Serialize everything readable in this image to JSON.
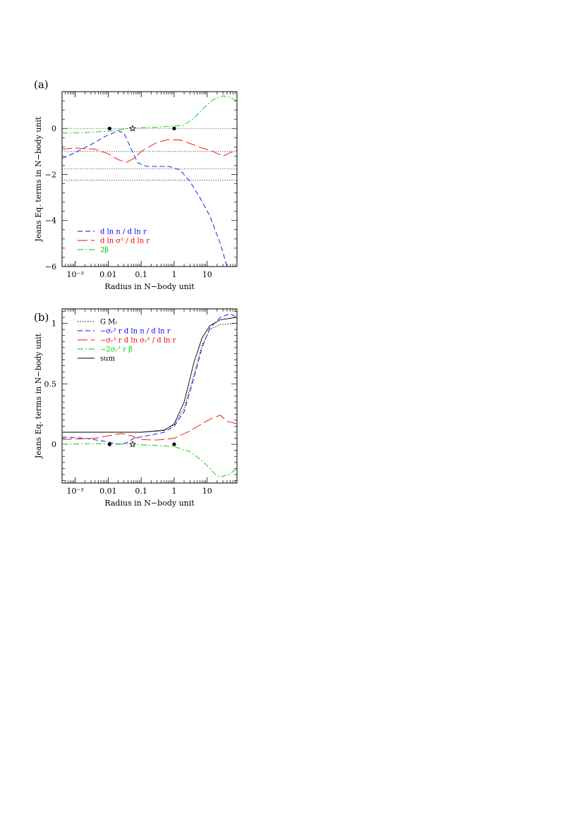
{
  "chart_data": [
    {
      "panel": "(a)",
      "type": "line",
      "xlabel": "Radius in N−body unit",
      "ylabel": "Jeans Eq. terms in N−body unit",
      "xscale": "log",
      "xlim": [
        0.0004,
        80
      ],
      "ylim": [
        -6,
        1.6
      ],
      "x_ticks": [
        "10⁻³",
        "0.01",
        "0.1",
        "1",
        "10"
      ],
      "y_ticks": [
        "0",
        "−2",
        "−4",
        "−6"
      ],
      "legend_position": "bottom-left",
      "reference_lines": [
        0,
        -1.0,
        -1.75,
        -2.25
      ],
      "markers": [
        {
          "symbol": "dot",
          "x": 0.011,
          "y": 0
        },
        {
          "symbol": "star",
          "x": 0.055,
          "y": 0
        },
        {
          "symbol": "dot",
          "x": 1.0,
          "y": 0
        }
      ],
      "series": [
        {
          "name": "d ln n / d ln r",
          "color": "#0000ff",
          "dash": "7,4",
          "points": [
            [
              0.0004,
              -1.3
            ],
            [
              0.001,
              -1.05
            ],
            [
              0.003,
              -0.7
            ],
            [
              0.008,
              -0.35
            ],
            [
              0.02,
              -0.1
            ],
            [
              0.03,
              -0.2
            ],
            [
              0.05,
              -0.9
            ],
            [
              0.08,
              -1.5
            ],
            [
              0.15,
              -1.65
            ],
            [
              0.3,
              -1.65
            ],
            [
              0.7,
              -1.65
            ],
            [
              1.5,
              -1.8
            ],
            [
              3,
              -2.3
            ],
            [
              6,
              -3.0
            ],
            [
              12,
              -3.8
            ],
            [
              25,
              -5.0
            ],
            [
              40,
              -6.0
            ]
          ]
        },
        {
          "name": "d ln σ² / d ln r",
          "color": "#ff0000",
          "dash": "14,5",
          "points": [
            [
              0.0004,
              -0.9
            ],
            [
              0.001,
              -0.85
            ],
            [
              0.004,
              -0.9
            ],
            [
              0.01,
              -1.1
            ],
            [
              0.02,
              -1.35
            ],
            [
              0.035,
              -1.48
            ],
            [
              0.06,
              -1.3
            ],
            [
              0.1,
              -1.0
            ],
            [
              0.3,
              -0.6
            ],
            [
              0.7,
              -0.48
            ],
            [
              1.5,
              -0.5
            ],
            [
              3,
              -0.65
            ],
            [
              7,
              -0.85
            ],
            [
              15,
              -1.0
            ],
            [
              30,
              -1.2
            ],
            [
              50,
              -1.05
            ],
            [
              80,
              -0.95
            ]
          ]
        },
        {
          "name": "2β",
          "color": "#00cc00",
          "dash": "8,3,2,3",
          "points": [
            [
              0.0004,
              -0.2
            ],
            [
              0.002,
              -0.18
            ],
            [
              0.01,
              -0.12
            ],
            [
              0.05,
              0.02
            ],
            [
              0.3,
              0.06
            ],
            [
              1,
              0.1
            ],
            [
              2,
              0.15
            ],
            [
              4,
              0.45
            ],
            [
              8,
              0.9
            ],
            [
              15,
              1.25
            ],
            [
              30,
              1.42
            ],
            [
              50,
              1.35
            ],
            [
              80,
              1.2
            ]
          ]
        }
      ]
    },
    {
      "panel": "(b)",
      "type": "line",
      "xlabel": "Radius in N−body unit",
      "ylabel": "Jeans Eq. terms in N−body unit",
      "xscale": "log",
      "xlim": [
        0.0004,
        80
      ],
      "ylim": [
        -0.32,
        1.12
      ],
      "x_ticks": [
        "10⁻³",
        "0.01",
        "0.1",
        "1",
        "10"
      ],
      "y_ticks": [
        "0",
        "0.5",
        "1"
      ],
      "legend_position": "top-left",
      "markers": [
        {
          "symbol": "dot",
          "x": 0.011,
          "y": 0
        },
        {
          "symbol": "star",
          "x": 0.055,
          "y": 0
        },
        {
          "symbol": "dot",
          "x": 1.0,
          "y": 0
        }
      ],
      "series": [
        {
          "name": "G Mᵣ",
          "color": "#000000",
          "dash": "1.5,2",
          "points": [
            [
              0.0004,
              0.1
            ],
            [
              0.1,
              0.1
            ],
            [
              0.5,
              0.12
            ],
            [
              1,
              0.16
            ],
            [
              2,
              0.3
            ],
            [
              4,
              0.58
            ],
            [
              7,
              0.82
            ],
            [
              12,
              0.95
            ],
            [
              25,
              0.99
            ],
            [
              80,
              1.0
            ]
          ]
        },
        {
          "name": "−σᵣ² r d ln n / d ln r",
          "color": "#0000ff",
          "dash": "7,4",
          "points": [
            [
              0.0004,
              0.06
            ],
            [
              0.002,
              0.05
            ],
            [
              0.01,
              0.02
            ],
            [
              0.02,
              0.0
            ],
            [
              0.035,
              0.01
            ],
            [
              0.06,
              0.05
            ],
            [
              0.15,
              0.07
            ],
            [
              0.5,
              0.1
            ],
            [
              1,
              0.15
            ],
            [
              2,
              0.27
            ],
            [
              4,
              0.55
            ],
            [
              7,
              0.8
            ],
            [
              12,
              0.96
            ],
            [
              25,
              1.05
            ],
            [
              50,
              1.08
            ],
            [
              80,
              1.05
            ]
          ]
        },
        {
          "name": "−σᵣ² r d ln σᵣ² / d ln r",
          "color": "#ff0000",
          "dash": "14,5",
          "points": [
            [
              0.0004,
              0.04
            ],
            [
              0.004,
              0.05
            ],
            [
              0.01,
              0.07
            ],
            [
              0.025,
              0.09
            ],
            [
              0.05,
              0.07
            ],
            [
              0.1,
              0.04
            ],
            [
              0.3,
              0.035
            ],
            [
              1,
              0.05
            ],
            [
              3,
              0.11
            ],
            [
              8,
              0.18
            ],
            [
              15,
              0.22
            ],
            [
              25,
              0.24
            ],
            [
              40,
              0.19
            ],
            [
              80,
              0.17
            ]
          ]
        },
        {
          "name": "−2σᵣ² r β",
          "color": "#00cc00",
          "dash": "8,3,2,3",
          "points": [
            [
              0.0004,
              0.0
            ],
            [
              0.003,
              0.005
            ],
            [
              0.01,
              0.005
            ],
            [
              0.05,
              0.0
            ],
            [
              0.3,
              -0.01
            ],
            [
              1,
              -0.02
            ],
            [
              3,
              -0.06
            ],
            [
              8,
              -0.15
            ],
            [
              18,
              -0.25
            ],
            [
              25,
              -0.27
            ],
            [
              45,
              -0.25
            ],
            [
              80,
              -0.2
            ]
          ]
        },
        {
          "name": "sum",
          "color": "#000000",
          "dash": "",
          "points": [
            [
              0.0004,
              0.1
            ],
            [
              0.1,
              0.1
            ],
            [
              0.5,
              0.115
            ],
            [
              1,
              0.17
            ],
            [
              2,
              0.35
            ],
            [
              4,
              0.68
            ],
            [
              7,
              0.88
            ],
            [
              12,
              0.98
            ],
            [
              25,
              1.03
            ],
            [
              80,
              1.05
            ]
          ]
        }
      ]
    }
  ]
}
